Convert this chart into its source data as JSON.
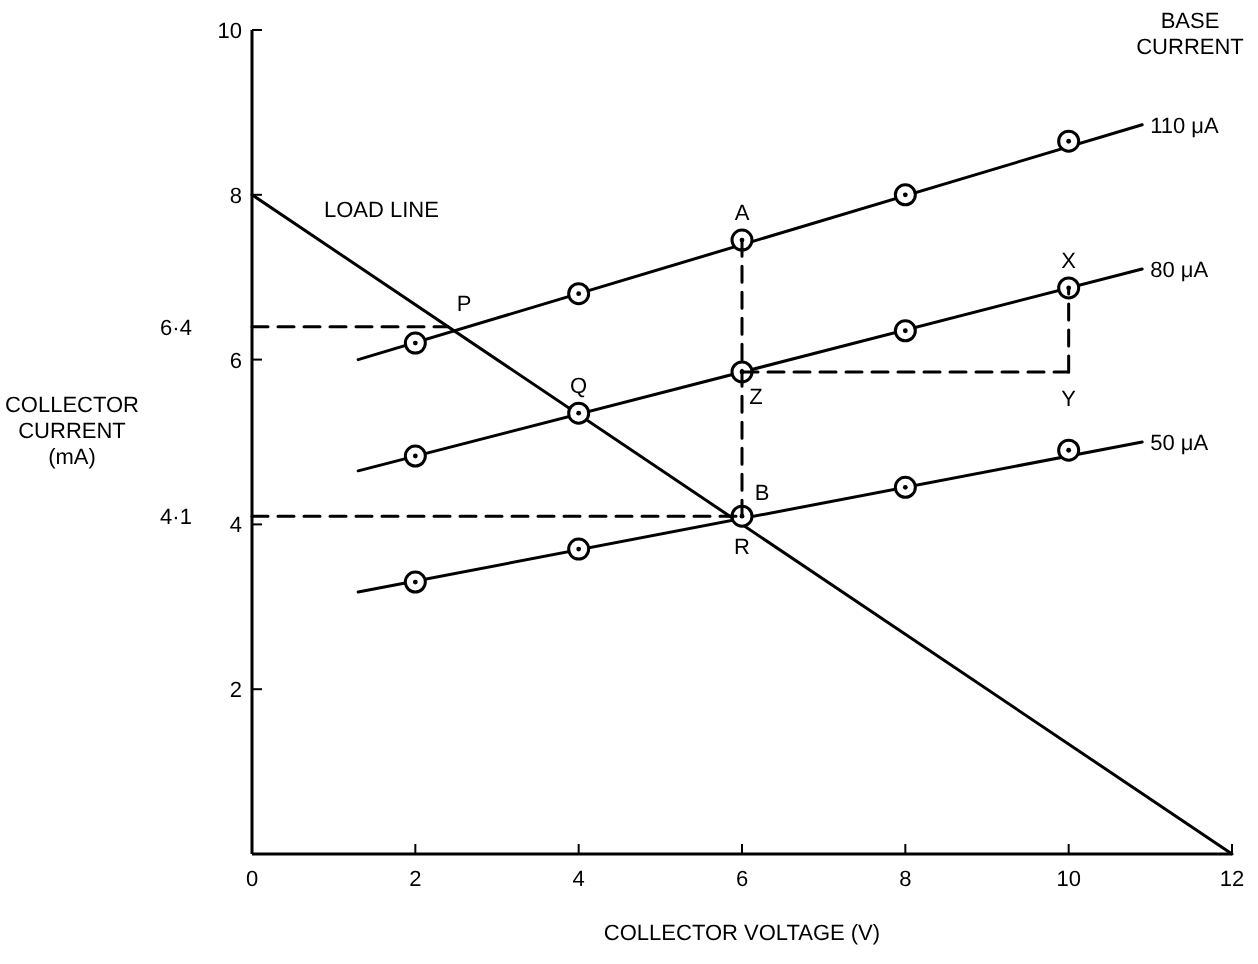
{
  "chart_data": {
    "type": "line",
    "xlabel": "COLLECTOR VOLTAGE (V)",
    "ylabel": "COLLECTOR CURRENT (mA)",
    "legend_title": "BASE CURRENT",
    "xlim": [
      0,
      12
    ],
    "xticks": [
      0,
      2,
      4,
      6,
      8,
      10,
      12
    ],
    "ylim": [
      0,
      10
    ],
    "yticks": [
      2,
      4,
      6,
      8,
      10
    ],
    "grid": false,
    "series": [
      {
        "name": "LOAD LINE",
        "color": "#000000",
        "marker": "none",
        "line_style": "solid",
        "x": [
          0,
          12
        ],
        "values": [
          8,
          0
        ]
      },
      {
        "name": "110 μA",
        "color": "#000000",
        "marker": "none",
        "line_style": "solid",
        "x": [
          1.3,
          10.9
        ],
        "values": [
          6.0,
          8.85
        ]
      },
      {
        "name": "80 μA",
        "color": "#000000",
        "marker": "none",
        "line_style": "solid",
        "x": [
          1.3,
          10.9
        ],
        "values": [
          4.65,
          7.1
        ]
      },
      {
        "name": "50 μA",
        "color": "#000000",
        "marker": "none",
        "line_style": "solid",
        "x": [
          1.3,
          10.9
        ],
        "values": [
          3.18,
          5.0
        ]
      },
      {
        "color": "#000000",
        "type": "scatter",
        "marker": "circle",
        "x": [
          2,
          4,
          6,
          8,
          10
        ],
        "values": [
          6.2,
          6.8,
          7.45,
          8.0,
          8.65
        ]
      },
      {
        "color": "#000000",
        "type": "scatter",
        "marker": "circle",
        "x": [
          2,
          4,
          6,
          8,
          10
        ],
        "values": [
          4.83,
          5.35,
          5.85,
          6.35,
          6.87
        ]
      },
      {
        "color": "#000000",
        "type": "scatter",
        "marker": "circle",
        "x": [
          2,
          4,
          6,
          8,
          10
        ],
        "values": [
          3.3,
          3.7,
          4.1,
          4.45,
          4.9
        ]
      },
      {
        "color": "#000000",
        "type": "line",
        "marker": "none",
        "line_style": "dashed",
        "x": [
          0,
          2.4
        ],
        "values": [
          6.4,
          6.4
        ]
      },
      {
        "color": "#000000",
        "type": "line",
        "marker": "none",
        "line_style": "dashed",
        "x": [
          0,
          6
        ],
        "values": [
          4.1,
          4.1
        ]
      },
      {
        "color": "#000000",
        "type": "line",
        "marker": "none",
        "line_style": "dashed",
        "x": [
          6,
          6
        ],
        "values": [
          4.1,
          7.45
        ]
      },
      {
        "color": "#000000",
        "type": "line",
        "marker": "none",
        "line_style": "dashed",
        "x": [
          6,
          10
        ],
        "values": [
          5.85,
          5.85
        ]
      },
      {
        "color": "#000000",
        "type": "line",
        "marker": "none",
        "line_style": "dashed",
        "x": [
          10,
          10
        ],
        "values": [
          5.85,
          6.87
        ]
      }
    ],
    "annotations": [
      {
        "text": "P",
        "x": 2.4,
        "y": 6.4
      },
      {
        "text": "Q",
        "x": 4,
        "y": 5.35
      },
      {
        "text": "A",
        "x": 6,
        "y": 7.45
      },
      {
        "text": "X",
        "x": 10,
        "y": 6.87
      },
      {
        "text": "Z",
        "x": 6,
        "y": 5.85
      },
      {
        "text": "Y",
        "x": 10,
        "y": 5.85
      },
      {
        "text": "B",
        "x": 6,
        "y": 4.1
      },
      {
        "text": "R",
        "x": 6,
        "y": 4.1
      },
      {
        "text": "6·4",
        "x": 0,
        "y": 6.4
      },
      {
        "text": "4·1",
        "x": 0,
        "y": 4.1
      }
    ]
  }
}
